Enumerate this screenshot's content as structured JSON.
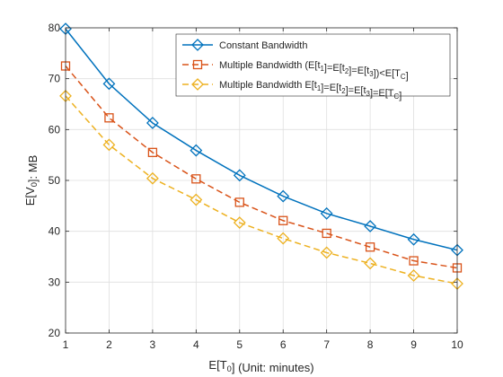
{
  "chart_data": {
    "type": "line",
    "title": "",
    "xlabel": {
      "main": "E[T",
      "sub": "0",
      "tail": "] (Unit: minutes)"
    },
    "ylabel": {
      "main": "E[V",
      "sub": "0",
      "tail": "]: MB"
    },
    "xlim": [
      1,
      10
    ],
    "ylim": [
      20,
      80
    ],
    "xticks": [
      1,
      2,
      3,
      4,
      5,
      6,
      7,
      8,
      9,
      10
    ],
    "yticks": [
      20,
      30,
      40,
      50,
      60,
      70,
      80
    ],
    "grid": true,
    "legend_position": "top-right",
    "x": [
      1,
      2,
      3,
      4,
      5,
      6,
      7,
      8,
      9,
      10
    ],
    "series": [
      {
        "name": "Constant Bandwidth",
        "name_parts": [
          [
            "Constant Bandwidth",
            ""
          ]
        ],
        "values": [
          79.8,
          69.0,
          61.3,
          55.9,
          51.0,
          46.9,
          43.5,
          41.0,
          38.4,
          36.3
        ],
        "color": "#0072BD",
        "marker": "diamond",
        "dash": ""
      },
      {
        "name": "Multiple Bandwidth (E[t1]=E[t2]=E[t3])<E[TC]",
        "name_parts": [
          [
            "Multiple Bandwidth (E[t",
            "1"
          ],
          [
            "]=E[t",
            "2"
          ],
          [
            "]=E[t",
            "3"
          ],
          [
            "])<E[T",
            "C"
          ],
          [
            "]",
            ""
          ]
        ],
        "values": [
          72.5,
          62.3,
          55.5,
          50.3,
          45.7,
          42.1,
          39.6,
          36.9,
          34.2,
          32.8
        ],
        "color": "#D95319",
        "marker": "square",
        "dash": "7,4"
      },
      {
        "name": "Multiple Bandwidth E[t1]=E[t2]=E[t3]=E[TC]",
        "name_parts": [
          [
            "Multiple Bandwidth E[t",
            "1"
          ],
          [
            "]=E[t",
            "2"
          ],
          [
            "]=E[t",
            "3"
          ],
          [
            "]=E[T",
            "C"
          ],
          [
            "]",
            ""
          ]
        ],
        "values": [
          66.6,
          57.0,
          50.4,
          46.2,
          41.7,
          38.6,
          35.8,
          33.7,
          31.3,
          29.7
        ],
        "color": "#EDB120",
        "marker": "diamond",
        "dash": "7,4"
      }
    ]
  }
}
